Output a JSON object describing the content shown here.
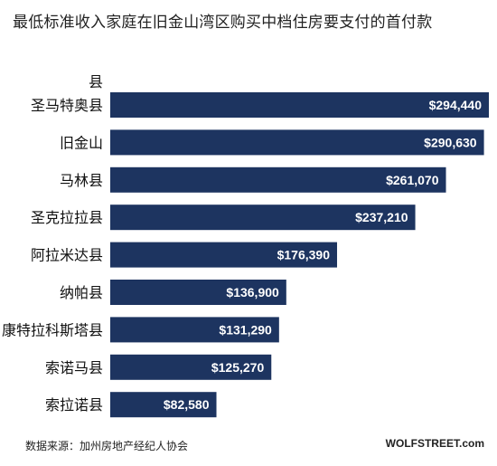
{
  "header": {
    "title": "最低标准收入家庭在旧金山湾区购买中档住房要支付的首付款"
  },
  "footer": {
    "source": "数据来源：加州房地产经纪人协会",
    "brand": "WOLFSTREET.com"
  },
  "colors": {
    "bar": "#1d3460",
    "label_text": "#ffffff",
    "category_text": "#111111"
  },
  "chart_data": {
    "type": "bar",
    "orientation": "horizontal",
    "title": "最低标准收入家庭在旧金山湾区购买中档住房要支付的首付款",
    "category_header": "县",
    "categories": [
      "圣马特奥县",
      "旧金山",
      "马林县",
      "圣克拉拉县",
      "阿拉米达县",
      "纳帕县",
      "康特拉科斯塔县",
      "索诺马县",
      "索拉诺县"
    ],
    "values": [
      294440,
      290630,
      261070,
      237210,
      176390,
      136900,
      131290,
      125270,
      82580
    ],
    "value_labels": [
      "$294,440",
      "$290,630",
      "$261,070",
      "$237,210",
      "$176,390",
      "$136,900",
      "$131,290",
      "$125,270",
      "$82,580"
    ],
    "xlim": [
      0,
      294440
    ],
    "grid": false,
    "legend": false
  }
}
